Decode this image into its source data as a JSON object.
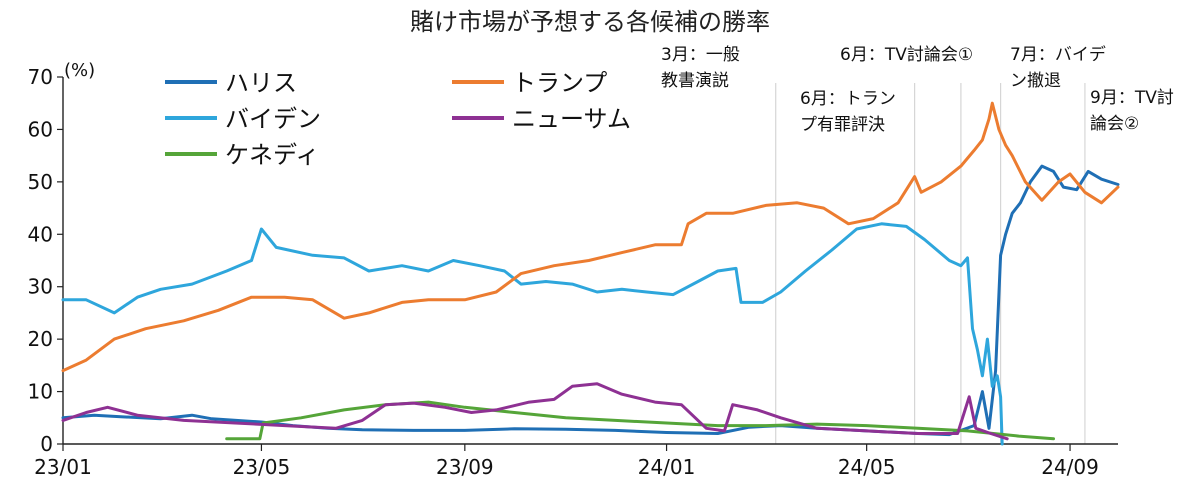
{
  "chart_data": {
    "type": "line",
    "title": "賭け市場が予想する各候補の勝率",
    "ylabel": "(%)",
    "ylim": [
      0,
      70
    ],
    "yticks": [
      0,
      10,
      20,
      30,
      40,
      50,
      60,
      70
    ],
    "x_start": "2023-01-01",
    "x_end": "2024-09-30",
    "xticks": [
      {
        "label": "23/01",
        "date": "2023-01-01"
      },
      {
        "label": "23/05",
        "date": "2023-05-01"
      },
      {
        "label": "23/09",
        "date": "2023-09-01"
      },
      {
        "label": "24/01",
        "date": "2024-01-01"
      },
      {
        "label": "24/05",
        "date": "2024-05-01"
      },
      {
        "label": "24/09",
        "date": "2024-09-01"
      }
    ],
    "grid": false,
    "legend_position": "top-left",
    "annotations": [
      {
        "date": "2024-03-07",
        "lines": [
          "3月：一般",
          "教書演説"
        ]
      },
      {
        "date": "2024-05-30",
        "lines": [
          "6月：トラン",
          "プ有罪評決"
        ]
      },
      {
        "date": "2024-06-27",
        "lines": [
          "6月：TV討論会①"
        ]
      },
      {
        "date": "2024-07-21",
        "lines": [
          "7月：バイデ",
          "ン撤退"
        ]
      },
      {
        "date": "2024-09-10",
        "lines": [
          "9月：TV討",
          "論会②"
        ]
      }
    ],
    "series": [
      {
        "name": "ハリス",
        "color": "#1f6fb5",
        "points": [
          [
            "2023-01-01",
            5
          ],
          [
            "2023-01-20",
            5.5
          ],
          [
            "2023-02-05",
            5.2
          ],
          [
            "2023-03-01",
            4.8
          ],
          [
            "2023-03-20",
            5.5
          ],
          [
            "2023-04-01",
            4.8
          ],
          [
            "2023-05-01",
            4.2
          ],
          [
            "2023-05-20",
            3.5
          ],
          [
            "2023-06-10",
            3
          ],
          [
            "2023-07-01",
            2.7
          ],
          [
            "2023-08-01",
            2.6
          ],
          [
            "2023-09-01",
            2.6
          ],
          [
            "2023-10-01",
            2.9
          ],
          [
            "2023-11-01",
            2.8
          ],
          [
            "2023-12-01",
            2.6
          ],
          [
            "2024-01-01",
            2.2
          ],
          [
            "2024-02-01",
            2
          ],
          [
            "2024-02-20",
            3.2
          ],
          [
            "2024-03-10",
            3.5
          ],
          [
            "2024-04-01",
            3
          ],
          [
            "2024-05-01",
            2.5
          ],
          [
            "2024-06-01",
            2
          ],
          [
            "2024-06-20",
            1.8
          ],
          [
            "2024-07-05",
            3.5
          ],
          [
            "2024-07-10",
            10
          ],
          [
            "2024-07-14",
            3
          ],
          [
            "2024-07-18",
            14
          ],
          [
            "2024-07-21",
            36
          ],
          [
            "2024-07-24",
            40
          ],
          [
            "2024-07-28",
            44
          ],
          [
            "2024-08-02",
            46
          ],
          [
            "2024-08-08",
            50
          ],
          [
            "2024-08-15",
            53
          ],
          [
            "2024-08-22",
            52
          ],
          [
            "2024-08-28",
            49
          ],
          [
            "2024-09-05",
            48.5
          ],
          [
            "2024-09-12",
            52
          ],
          [
            "2024-09-20",
            50.5
          ],
          [
            "2024-09-30",
            49.5
          ]
        ]
      },
      {
        "name": "バイデン",
        "color": "#2ea6dc",
        "points": [
          [
            "2023-01-01",
            27.5
          ],
          [
            "2023-01-15",
            27.5
          ],
          [
            "2023-02-01",
            25
          ],
          [
            "2023-02-15",
            28
          ],
          [
            "2023-03-01",
            29.5
          ],
          [
            "2023-03-20",
            30.5
          ],
          [
            "2023-04-10",
            33
          ],
          [
            "2023-04-25",
            35
          ],
          [
            "2023-05-01",
            41
          ],
          [
            "2023-05-10",
            37.5
          ],
          [
            "2023-06-01",
            36
          ],
          [
            "2023-06-20",
            35.5
          ],
          [
            "2023-07-05",
            33
          ],
          [
            "2023-07-25",
            34
          ],
          [
            "2023-08-10",
            33
          ],
          [
            "2023-08-25",
            35
          ],
          [
            "2023-09-10",
            34
          ],
          [
            "2023-09-25",
            33
          ],
          [
            "2023-10-05",
            30.5
          ],
          [
            "2023-10-20",
            31
          ],
          [
            "2023-11-05",
            30.5
          ],
          [
            "2023-11-20",
            29
          ],
          [
            "2023-12-05",
            29.5
          ],
          [
            "2023-12-20",
            29
          ],
          [
            "2024-01-05",
            28.5
          ],
          [
            "2024-01-20",
            31
          ],
          [
            "2024-02-01",
            33
          ],
          [
            "2024-02-12",
            33.5
          ],
          [
            "2024-02-15",
            27
          ],
          [
            "2024-02-28",
            27
          ],
          [
            "2024-03-10",
            29
          ],
          [
            "2024-03-25",
            33
          ],
          [
            "2024-04-10",
            37
          ],
          [
            "2024-04-25",
            41
          ],
          [
            "2024-05-10",
            42
          ],
          [
            "2024-05-25",
            41.5
          ],
          [
            "2024-06-05",
            39
          ],
          [
            "2024-06-20",
            35
          ],
          [
            "2024-06-27",
            34
          ],
          [
            "2024-07-01",
            35.5
          ],
          [
            "2024-07-04",
            22
          ],
          [
            "2024-07-07",
            18
          ],
          [
            "2024-07-10",
            13
          ],
          [
            "2024-07-13",
            20
          ],
          [
            "2024-07-16",
            11
          ],
          [
            "2024-07-19",
            13
          ],
          [
            "2024-07-21",
            9
          ],
          [
            "2024-07-22",
            0
          ]
        ]
      },
      {
        "name": "ケネディ",
        "color": "#55a539",
        "points": [
          [
            "2023-04-10",
            1
          ],
          [
            "2023-04-30",
            1
          ],
          [
            "2023-05-02",
            4
          ],
          [
            "2023-05-25",
            5
          ],
          [
            "2023-06-20",
            6.5
          ],
          [
            "2023-07-15",
            7.5
          ],
          [
            "2023-08-10",
            8
          ],
          [
            "2023-09-01",
            7
          ],
          [
            "2023-10-01",
            6
          ],
          [
            "2023-11-01",
            5
          ],
          [
            "2023-12-01",
            4.5
          ],
          [
            "2024-01-01",
            4
          ],
          [
            "2024-02-01",
            3.5
          ],
          [
            "2024-03-01",
            3.5
          ],
          [
            "2024-04-01",
            3.8
          ],
          [
            "2024-05-01",
            3.5
          ],
          [
            "2024-06-01",
            3
          ],
          [
            "2024-07-01",
            2.5
          ],
          [
            "2024-08-01",
            1.5
          ],
          [
            "2024-08-22",
            1
          ]
        ]
      },
      {
        "name": "トランプ",
        "color": "#ec7c30",
        "points": [
          [
            "2023-01-01",
            14
          ],
          [
            "2023-01-15",
            16
          ],
          [
            "2023-02-01",
            20
          ],
          [
            "2023-02-20",
            22
          ],
          [
            "2023-03-15",
            23.5
          ],
          [
            "2023-04-05",
            25.5
          ],
          [
            "2023-04-25",
            28
          ],
          [
            "2023-05-15",
            28
          ],
          [
            "2023-06-01",
            27.5
          ],
          [
            "2023-06-20",
            24
          ],
          [
            "2023-07-05",
            25
          ],
          [
            "2023-07-25",
            27
          ],
          [
            "2023-08-10",
            27.5
          ],
          [
            "2023-09-01",
            27.5
          ],
          [
            "2023-09-20",
            29
          ],
          [
            "2023-10-05",
            32.5
          ],
          [
            "2023-10-25",
            34
          ],
          [
            "2023-11-15",
            35
          ],
          [
            "2023-12-05",
            36.5
          ],
          [
            "2023-12-25",
            38
          ],
          [
            "2024-01-10",
            38
          ],
          [
            "2024-01-14",
            42
          ],
          [
            "2024-01-25",
            44
          ],
          [
            "2024-02-10",
            44
          ],
          [
            "2024-03-01",
            45.5
          ],
          [
            "2024-03-20",
            46
          ],
          [
            "2024-04-05",
            45
          ],
          [
            "2024-04-20",
            42
          ],
          [
            "2024-05-05",
            43
          ],
          [
            "2024-05-20",
            46
          ],
          [
            "2024-05-30",
            51
          ],
          [
            "2024-06-03",
            48
          ],
          [
            "2024-06-15",
            50
          ],
          [
            "2024-06-27",
            53
          ],
          [
            "2024-07-05",
            56
          ],
          [
            "2024-07-10",
            58
          ],
          [
            "2024-07-14",
            62
          ],
          [
            "2024-07-16",
            65
          ],
          [
            "2024-07-20",
            60
          ],
          [
            "2024-07-24",
            57
          ],
          [
            "2024-07-28",
            55
          ],
          [
            "2024-08-05",
            50
          ],
          [
            "2024-08-15",
            46.5
          ],
          [
            "2024-08-25",
            50
          ],
          [
            "2024-09-01",
            51.5
          ],
          [
            "2024-09-10",
            48
          ],
          [
            "2024-09-20",
            46
          ],
          [
            "2024-09-30",
            49
          ]
        ]
      },
      {
        "name": "ニューサム",
        "color": "#8e3193",
        "points": [
          [
            "2023-01-01",
            4.5
          ],
          [
            "2023-01-15",
            6
          ],
          [
            "2023-01-28",
            7
          ],
          [
            "2023-02-15",
            5.5
          ],
          [
            "2023-03-15",
            4.5
          ],
          [
            "2023-04-15",
            4
          ],
          [
            "2023-05-15",
            3.5
          ],
          [
            "2023-06-15",
            3
          ],
          [
            "2023-07-01",
            4.5
          ],
          [
            "2023-07-15",
            7.5
          ],
          [
            "2023-08-01",
            7.8
          ],
          [
            "2023-08-20",
            7
          ],
          [
            "2023-09-05",
            6
          ],
          [
            "2023-09-20",
            6.5
          ],
          [
            "2023-10-10",
            8
          ],
          [
            "2023-10-25",
            8.5
          ],
          [
            "2023-11-05",
            11
          ],
          [
            "2023-11-20",
            11.5
          ],
          [
            "2023-12-05",
            9.5
          ],
          [
            "2023-12-25",
            8
          ],
          [
            "2024-01-10",
            7.5
          ],
          [
            "2024-01-25",
            3
          ],
          [
            "2024-02-05",
            2.5
          ],
          [
            "2024-02-10",
            7.5
          ],
          [
            "2024-02-25",
            6.5
          ],
          [
            "2024-03-10",
            5
          ],
          [
            "2024-04-01",
            3
          ],
          [
            "2024-05-01",
            2.5
          ],
          [
            "2024-06-01",
            2
          ],
          [
            "2024-06-25",
            2
          ],
          [
            "2024-07-02",
            9
          ],
          [
            "2024-07-06",
            3
          ],
          [
            "2024-07-15",
            2
          ],
          [
            "2024-07-25",
            1
          ]
        ]
      }
    ]
  }
}
